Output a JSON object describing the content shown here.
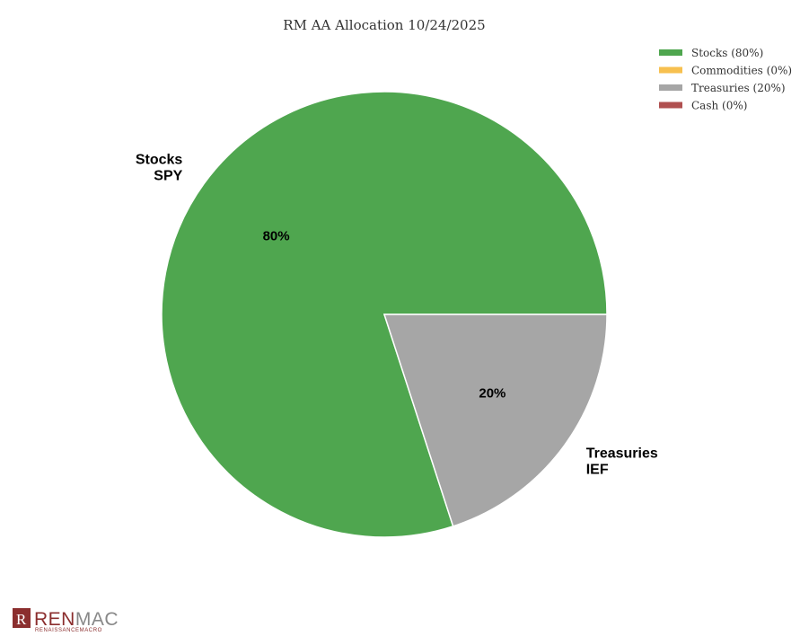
{
  "chart_data": {
    "type": "pie",
    "title": "RM AA Allocation 10/24/2025",
    "legend_position": "top-right",
    "slices": [
      {
        "name": "Stocks",
        "value": 80,
        "ticker": "SPY",
        "color": "#4fa64f",
        "legend": "Stocks (80%)",
        "pct_label": "80%"
      },
      {
        "name": "Commodities",
        "value": 0,
        "ticker": "",
        "color": "#f7c04f",
        "legend": "Commodities (0%)",
        "pct_label": ""
      },
      {
        "name": "Treasuries",
        "value": 20,
        "ticker": "IEF",
        "color": "#a6a6a6",
        "legend": "Treasuries (20%)",
        "pct_label": "20%"
      },
      {
        "name": "Cash",
        "value": 0,
        "ticker": "",
        "color": "#b05050",
        "legend": "Cash (0%)",
        "pct_label": ""
      }
    ]
  },
  "logo": {
    "text_ren": "REN",
    "text_mac": "MAC",
    "subtitle": "RENAISSANCEMACRO",
    "color_ren": "#8b2e2e",
    "color_mac": "#888888"
  }
}
